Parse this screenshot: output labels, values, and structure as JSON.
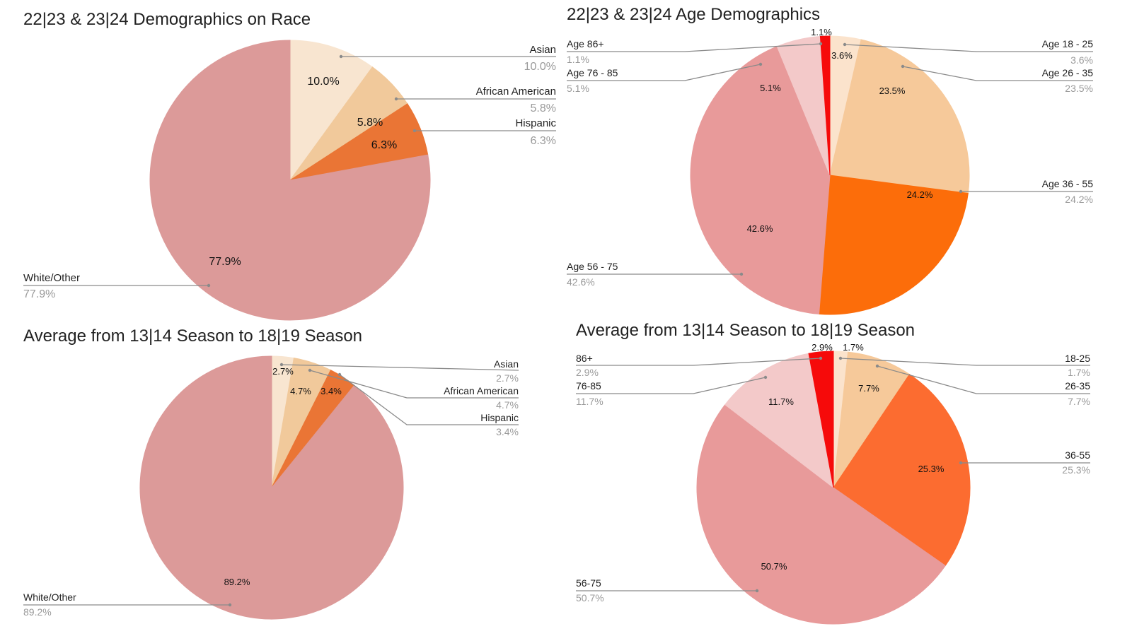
{
  "chart_data": [
    {
      "type": "pie",
      "title": "22|23 & 23|24 Demographics on Race",
      "slices": [
        {
          "label": "Asian",
          "value": 10.0,
          "display": "10.0%",
          "color": "#f8e5d0"
        },
        {
          "label": "African American",
          "value": 5.8,
          "display": "5.8%",
          "color": "#f1c99b"
        },
        {
          "label": "Hispanic",
          "value": 6.3,
          "display": "6.3%",
          "color": "#ea7535"
        },
        {
          "label": "White/Other",
          "value": 77.9,
          "display": "77.9%",
          "color": "#dc9a99"
        }
      ]
    },
    {
      "type": "pie",
      "title": "22|23 & 23|24 Age Demographics",
      "slices": [
        {
          "label": "Age 18 - 25",
          "value": 3.6,
          "display": "3.6%",
          "color": "#fbe3cc"
        },
        {
          "label": "Age 26 - 35",
          "value": 23.5,
          "display": "23.5%",
          "color": "#f6c99a"
        },
        {
          "label": "Age 36 - 55",
          "value": 24.2,
          "display": "24.2%",
          "color": "#fc6d0a"
        },
        {
          "label": "Age 56 - 75",
          "value": 42.6,
          "display": "42.6%",
          "color": "#e89a9a"
        },
        {
          "label": "Age 76 - 85",
          "value": 5.1,
          "display": "5.1%",
          "color": "#f3c9c9"
        },
        {
          "label": "Age 86+",
          "value": 1.1,
          "display": "1.1%",
          "color": "#f60a0a"
        }
      ]
    },
    {
      "type": "pie",
      "title": "Average from 13|14 Season to 18|19 Season",
      "slices": [
        {
          "label": "Asian",
          "value": 2.7,
          "display": "2.7%",
          "color": "#f8e5d0"
        },
        {
          "label": "African American",
          "value": 4.7,
          "display": "4.7%",
          "color": "#f1c99b"
        },
        {
          "label": "Hispanic",
          "value": 3.4,
          "display": "3.4%",
          "color": "#ea7535"
        },
        {
          "label": "White/Other",
          "value": 89.2,
          "display": "89.2%",
          "color": "#dc9a99"
        }
      ]
    },
    {
      "type": "pie",
      "title": "Average from 13|14 Season to 18|19 Season",
      "slices": [
        {
          "label": "18-25",
          "value": 1.7,
          "display": "1.7%",
          "color": "#fbe3cc"
        },
        {
          "label": "26-35",
          "value": 7.7,
          "display": "7.7%",
          "color": "#f6c99a"
        },
        {
          "label": "36-55",
          "value": 25.3,
          "display": "25.3%",
          "color": "#fc6c30"
        },
        {
          "label": "56-75",
          "value": 50.7,
          "display": "50.7%",
          "color": "#e89a9a"
        },
        {
          "label": "76-85",
          "value": 11.7,
          "display": "11.7%",
          "color": "#f3c9c9"
        },
        {
          "label": "86+",
          "value": 2.9,
          "display": "2.9%",
          "color": "#f60a0a"
        }
      ]
    }
  ]
}
